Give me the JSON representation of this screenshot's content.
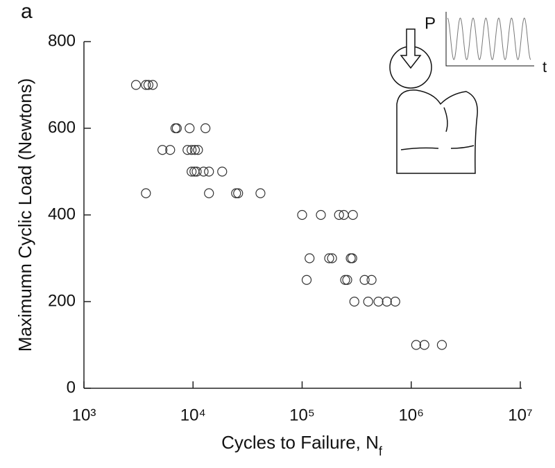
{
  "chart_data": {
    "type": "scatter",
    "panel_label": "a",
    "x_label": "Cycles to Failure, N",
    "x_label_subscript": "f",
    "y_label": "Maximumn Cyclic Load (Newtons)",
    "x_scale": "log",
    "xlim": [
      1000,
      10000000
    ],
    "xticks": [
      {
        "value": 1000,
        "label": "10³"
      },
      {
        "value": 10000,
        "label": "10⁴"
      },
      {
        "value": 100000,
        "label": "10⁵"
      },
      {
        "value": 1000000,
        "label": "10⁶"
      },
      {
        "value": 10000000,
        "label": "10⁷"
      }
    ],
    "ylim": [
      0,
      800
    ],
    "yticks": [
      0,
      200,
      400,
      600,
      800
    ],
    "marker_color": "#333333",
    "inset": {
      "load_label": "P",
      "time_label": "t"
    },
    "x": [
      3000,
      3700,
      3900,
      4270,
      6900,
      7100,
      9300,
      13000,
      5240,
      6170,
      8900,
      9700,
      10400,
      11100,
      9700,
      10300,
      10800,
      12500,
      14000,
      18500,
      3700,
      14000,
      24800,
      25900,
      41500,
      100000,
      148500,
      218000,
      241000,
      292000,
      117000,
      177000,
      188000,
      279000,
      288000,
      110000,
      248000,
      259000,
      374000,
      433000,
      301000,
      403000,
      501000,
      598000,
      714000,
      1110000,
      1320000,
      1910000
    ],
    "values": [
      700,
      700,
      700,
      700,
      600,
      600,
      600,
      600,
      550,
      550,
      550,
      550,
      550,
      550,
      500,
      500,
      500,
      500,
      500,
      500,
      450,
      450,
      450,
      450,
      450,
      400,
      400,
      400,
      400,
      400,
      300,
      300,
      300,
      300,
      300,
      250,
      250,
      250,
      250,
      250,
      200,
      200,
      200,
      200,
      200,
      100,
      100,
      100
    ]
  }
}
